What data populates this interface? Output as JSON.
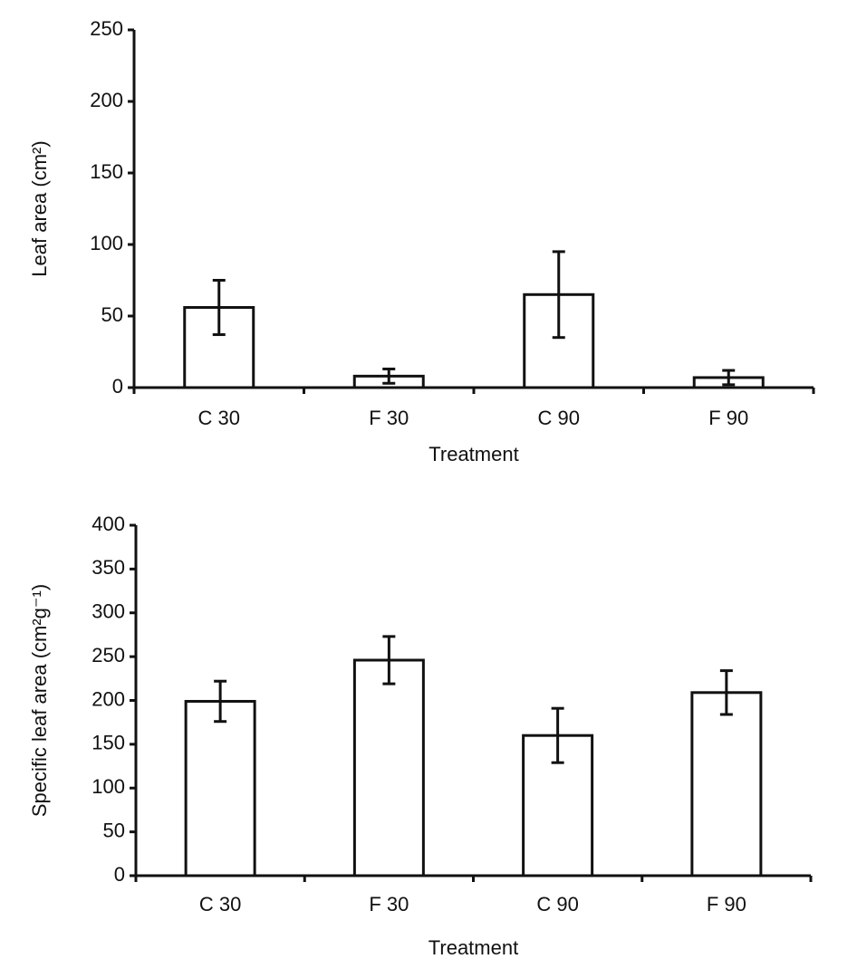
{
  "chart_data": [
    {
      "type": "bar",
      "ylabel": "Leaf area (cm²)",
      "xlabel": "Treatment",
      "categories": [
        "C 30",
        "F 30",
        "C 90",
        "F 90"
      ],
      "values": [
        56,
        8,
        65,
        7
      ],
      "errors": [
        19,
        5,
        30,
        5
      ],
      "color": "#ffffff",
      "ylim": [
        0,
        250
      ],
      "yticks": [
        0,
        50,
        100,
        150,
        200,
        250
      ]
    },
    {
      "type": "bar",
      "ylabel": "Specific leaf area (cm²g⁻¹)",
      "xlabel": "Treatment",
      "categories": [
        "C 30",
        "F 30",
        "C 90",
        "F 90"
      ],
      "values": [
        199,
        246,
        160,
        209
      ],
      "errors": [
        23,
        27,
        31,
        25
      ],
      "color": "#ffffff",
      "ylim": [
        0,
        400
      ],
      "yticks": [
        0,
        50,
        100,
        150,
        200,
        250,
        300,
        350,
        400
      ]
    }
  ]
}
